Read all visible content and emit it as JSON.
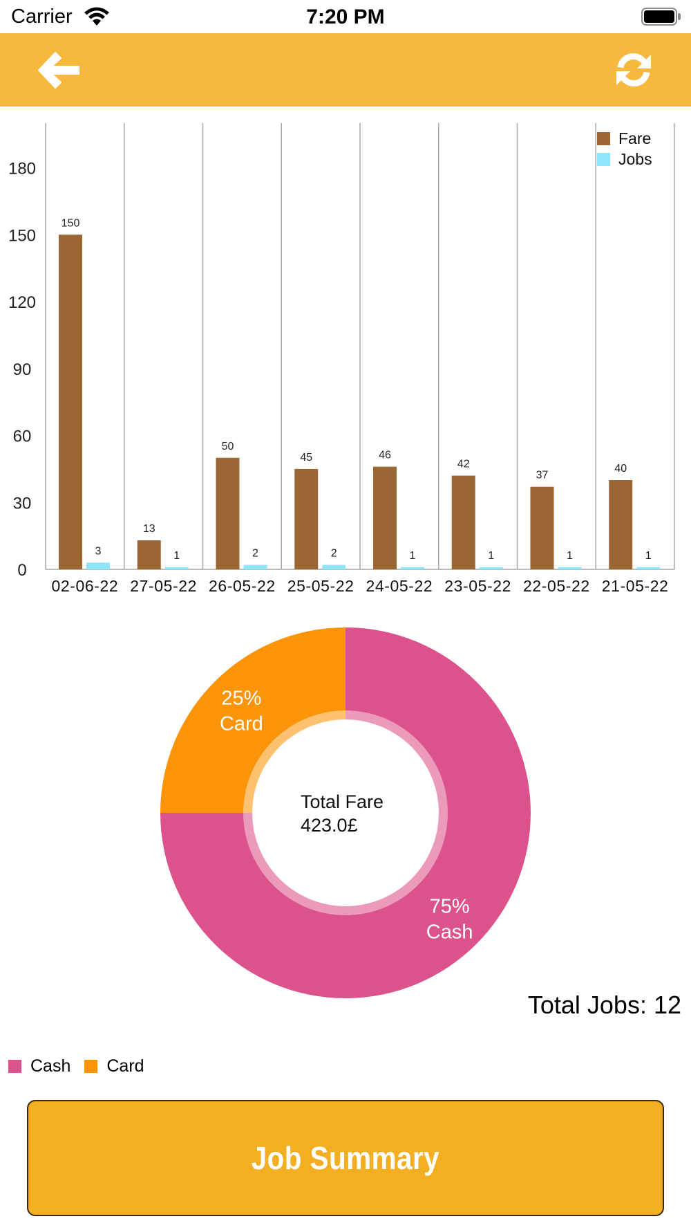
{
  "status_bar": {
    "carrier": "Carrier",
    "time": "7:20 PM"
  },
  "header": {
    "back_icon": "arrow-left-icon",
    "refresh_icon": "refresh-icon",
    "background_color": "#F7B93D"
  },
  "chart_data": [
    {
      "type": "bar",
      "categories": [
        "02-06-22",
        "27-05-22",
        "26-05-22",
        "25-05-22",
        "24-05-22",
        "23-05-22",
        "22-05-22",
        "21-05-22"
      ],
      "series": [
        {
          "name": "Fare",
          "color": "#9A6634",
          "values": [
            150,
            13,
            50,
            45,
            46,
            42,
            37,
            40
          ]
        },
        {
          "name": "Jobs",
          "color": "#8FE6FB",
          "values": [
            3,
            1,
            2,
            2,
            1,
            1,
            1,
            1
          ]
        }
      ],
      "y_ticks": [
        0,
        30,
        60,
        90,
        120,
        150,
        180
      ],
      "ylim": [
        0,
        200
      ],
      "grid": "vertical",
      "legend": "top-right"
    },
    {
      "type": "pie",
      "style": "donut",
      "slices": [
        {
          "name": "Cash",
          "percent": "75%",
          "value": 75,
          "color": "#DC528C"
        },
        {
          "name": "Card",
          "percent": "25%",
          "value": 25,
          "color": "#FB9409"
        }
      ],
      "center_text": [
        "Total Fare",
        "423.0£"
      ],
      "legend": "bottom-left"
    }
  ],
  "total_jobs": "Total Jobs: 12",
  "pie_legend": [
    {
      "label": "Cash",
      "color": "#DC528C"
    },
    {
      "label": "Card",
      "color": "#FB9409"
    }
  ],
  "summary_button": {
    "label": "Job Summary"
  }
}
